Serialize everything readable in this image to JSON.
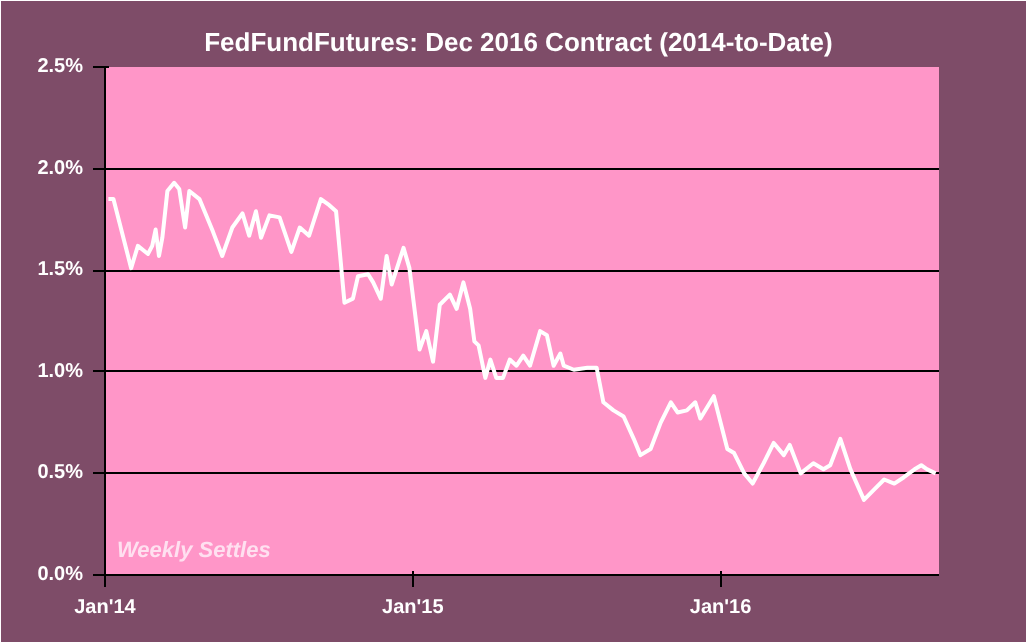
{
  "chart_data": {
    "type": "line",
    "title": "FedFundFutures:  Dec 2016 Contract (2014-to-Date)",
    "annotations": [
      "Weekly Settles"
    ],
    "xlim": [
      "2014-01-01",
      "2016-09-16"
    ],
    "ylim": [
      0,
      2.5
    ],
    "xticks": [
      {
        "value": "2014-01-01",
        "label": "Jan'14"
      },
      {
        "value": "2015-01-01",
        "label": "Jan'15"
      },
      {
        "value": "2016-01-01",
        "label": "Jan'16"
      }
    ],
    "yticks": [
      {
        "value": 0,
        "label": "0.0%"
      },
      {
        "value": 0.5,
        "label": "0.5%"
      },
      {
        "value": 1,
        "label": "1.0%"
      },
      {
        "value": 1.5,
        "label": "1.5%"
      },
      {
        "value": 2,
        "label": "2.0%"
      },
      {
        "value": 2.5,
        "label": "2.5%"
      }
    ],
    "grid": "y",
    "series": [
      {
        "color": "#ffffff",
        "x": [
          "2014-01-05",
          "2014-01-11",
          "2014-02-01",
          "2014-02-09",
          "2014-02-21",
          "2014-02-26",
          "2014-03-02",
          "2014-03-06",
          "2014-03-10",
          "2014-03-16",
          "2014-03-24",
          "2014-03-30",
          "2014-04-06",
          "2014-04-11",
          "2014-04-23",
          "2014-05-09",
          "2014-05-20",
          "2014-06-01",
          "2014-06-13",
          "2014-06-21",
          "2014-06-29",
          "2014-07-05",
          "2014-07-15",
          "2014-07-27",
          "2014-08-10",
          "2014-08-20",
          "2014-08-31",
          "2014-09-14",
          "2014-09-24",
          "2014-10-02",
          "2014-10-12",
          "2014-10-22",
          "2014-10-28",
          "2014-11-09",
          "2014-11-15",
          "2014-11-24",
          "2014-12-01",
          "2014-12-07",
          "2014-12-21",
          "2014-12-28",
          "2015-01-09",
          "2015-01-17",
          "2015-01-25",
          "2015-02-02",
          "2015-02-14",
          "2015-02-22",
          "2015-03-02",
          "2015-03-10",
          "2015-03-15",
          "2015-03-20",
          "2015-03-28",
          "2015-04-03",
          "2015-04-10",
          "2015-04-18",
          "2015-04-26",
          "2015-05-04",
          "2015-05-12",
          "2015-05-20",
          "2015-06-01",
          "2015-06-09",
          "2015-06-17",
          "2015-06-25",
          "2015-06-29",
          "2015-07-11",
          "2015-07-27",
          "2015-08-07",
          "2015-08-15",
          "2015-08-27",
          "2015-09-08",
          "2015-09-20",
          "2015-09-28",
          "2015-10-10",
          "2015-10-22",
          "2015-11-03",
          "2015-11-11",
          "2015-11-22",
          "2015-12-02",
          "2015-12-08",
          "2015-12-24",
          "2016-01-09",
          "2016-01-17",
          "2016-01-29",
          "2016-02-08",
          "2016-02-21",
          "2016-03-04",
          "2016-03-16",
          "2016-03-23",
          "2016-04-05",
          "2016-04-20",
          "2016-05-02",
          "2016-05-10",
          "2016-05-22",
          "2016-06-03",
          "2016-06-19",
          "2016-07-01",
          "2016-07-13",
          "2016-07-25",
          "2016-08-05",
          "2016-08-18",
          "2016-08-26",
          "2016-09-02",
          "2016-09-12"
        ],
        "values": [
          1.85,
          1.85,
          1.51,
          1.62,
          1.58,
          1.62,
          1.7,
          1.57,
          1.66,
          1.89,
          1.93,
          1.9,
          1.71,
          1.89,
          1.85,
          1.69,
          1.57,
          1.71,
          1.78,
          1.67,
          1.79,
          1.66,
          1.77,
          1.76,
          1.59,
          1.71,
          1.67,
          1.85,
          1.82,
          1.79,
          1.34,
          1.36,
          1.47,
          1.48,
          1.44,
          1.36,
          1.57,
          1.43,
          1.61,
          1.51,
          1.11,
          1.2,
          1.05,
          1.33,
          1.38,
          1.31,
          1.44,
          1.31,
          1.15,
          1.13,
          0.97,
          1.06,
          0.97,
          0.97,
          1.06,
          1.03,
          1.08,
          1.03,
          1.2,
          1.18,
          1.03,
          1.09,
          1.03,
          1.01,
          1.02,
          1.02,
          0.85,
          0.81,
          0.78,
          0.67,
          0.59,
          0.62,
          0.75,
          0.85,
          0.8,
          0.81,
          0.85,
          0.77,
          0.88,
          0.62,
          0.6,
          0.5,
          0.45,
          0.55,
          0.65,
          0.59,
          0.64,
          0.5,
          0.55,
          0.52,
          0.54,
          0.67,
          0.52,
          0.37,
          0.42,
          0.47,
          0.45,
          0.48,
          0.52,
          0.54,
          0.52,
          0.5
        ]
      }
    ]
  }
}
